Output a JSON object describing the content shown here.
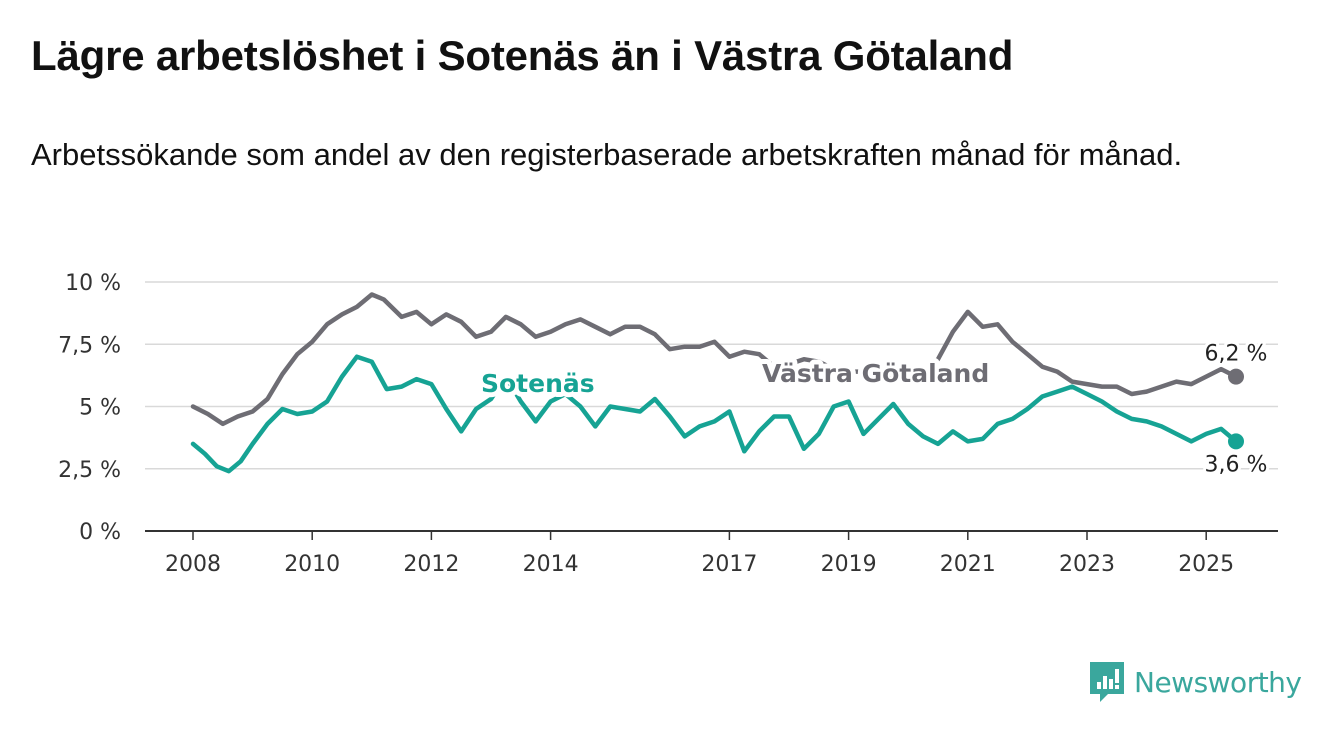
{
  "header": {
    "title": "Lägre arbetslöshet i Sotenäs än i Västra Götaland",
    "subtitle": "Arbetssökande som andel av den registerbaserade arbetskraften månad för månad."
  },
  "branding": {
    "name": "Newsworthy",
    "icon": "newsworthy-logo-icon",
    "color": "#3aa79d"
  },
  "chart_data": {
    "type": "line",
    "xlim": [
      2008,
      2026.2
    ],
    "ylim": [
      0,
      10
    ],
    "x_ticks": [
      2008,
      2010,
      2012,
      2014,
      2017,
      2019,
      2021,
      2023,
      2025
    ],
    "y_ticks": [
      {
        "value": 0,
        "label": "0 %"
      },
      {
        "value": 2.5,
        "label": "2,5 %"
      },
      {
        "value": 5,
        "label": "5 %"
      },
      {
        "value": 7.5,
        "label": "7,5 %"
      },
      {
        "value": 10,
        "label": "10 %"
      }
    ],
    "grid": true,
    "series": [
      {
        "name": "Västra Götaland",
        "color": "#6e6d74",
        "end_label": "6,2 %",
        "points": [
          [
            2008.0,
            5.0
          ],
          [
            2008.25,
            4.7
          ],
          [
            2008.5,
            4.3
          ],
          [
            2008.75,
            4.6
          ],
          [
            2009.0,
            4.8
          ],
          [
            2009.25,
            5.3
          ],
          [
            2009.5,
            6.3
          ],
          [
            2009.75,
            7.1
          ],
          [
            2010.0,
            7.6
          ],
          [
            2010.25,
            8.3
          ],
          [
            2010.5,
            8.7
          ],
          [
            2010.75,
            9.0
          ],
          [
            2011.0,
            9.5
          ],
          [
            2011.2,
            9.3
          ],
          [
            2011.5,
            8.6
          ],
          [
            2011.75,
            8.8
          ],
          [
            2012.0,
            8.3
          ],
          [
            2012.25,
            8.7
          ],
          [
            2012.5,
            8.4
          ],
          [
            2012.75,
            7.8
          ],
          [
            2013.0,
            8.0
          ],
          [
            2013.25,
            8.6
          ],
          [
            2013.5,
            8.3
          ],
          [
            2013.75,
            7.8
          ],
          [
            2014.0,
            8.0
          ],
          [
            2014.25,
            8.3
          ],
          [
            2014.5,
            8.5
          ],
          [
            2014.75,
            8.2
          ],
          [
            2015.0,
            7.9
          ],
          [
            2015.25,
            8.2
          ],
          [
            2015.5,
            8.2
          ],
          [
            2015.75,
            7.9
          ],
          [
            2016.0,
            7.3
          ],
          [
            2016.25,
            7.4
          ],
          [
            2016.5,
            7.4
          ],
          [
            2016.75,
            7.6
          ],
          [
            2017.0,
            7.0
          ],
          [
            2017.25,
            7.2
          ],
          [
            2017.5,
            7.1
          ],
          [
            2017.75,
            6.6
          ],
          [
            2018.0,
            6.7
          ],
          [
            2018.25,
            6.9
          ],
          [
            2018.5,
            6.8
          ],
          [
            2018.75,
            6.5
          ],
          [
            2019.0,
            6.4
          ],
          [
            2019.25,
            6.4
          ],
          [
            2019.5,
            6.2
          ],
          [
            2019.75,
            6.1
          ],
          [
            2020.0,
            6.0
          ],
          [
            2020.25,
            6.2
          ],
          [
            2020.5,
            6.9
          ],
          [
            2020.75,
            8.0
          ],
          [
            2021.0,
            8.8
          ],
          [
            2021.25,
            8.2
          ],
          [
            2021.5,
            8.3
          ],
          [
            2021.75,
            7.6
          ],
          [
            2022.0,
            7.1
          ],
          [
            2022.25,
            6.6
          ],
          [
            2022.5,
            6.4
          ],
          [
            2022.75,
            6.0
          ],
          [
            2023.0,
            5.9
          ],
          [
            2023.25,
            5.8
          ],
          [
            2023.5,
            5.8
          ],
          [
            2023.75,
            5.5
          ],
          [
            2024.0,
            5.6
          ],
          [
            2024.25,
            5.8
          ],
          [
            2024.5,
            6.0
          ],
          [
            2024.75,
            5.9
          ],
          [
            2025.0,
            6.2
          ],
          [
            2025.25,
            6.5
          ],
          [
            2025.5,
            6.2
          ]
        ]
      },
      {
        "name": "Sotenäs",
        "color": "#16a394",
        "end_label": "3,6 %",
        "points": [
          [
            2008.0,
            3.5
          ],
          [
            2008.2,
            3.1
          ],
          [
            2008.4,
            2.6
          ],
          [
            2008.6,
            2.4
          ],
          [
            2008.8,
            2.8
          ],
          [
            2009.0,
            3.5
          ],
          [
            2009.25,
            4.3
          ],
          [
            2009.5,
            4.9
          ],
          [
            2009.75,
            4.7
          ],
          [
            2010.0,
            4.8
          ],
          [
            2010.25,
            5.2
          ],
          [
            2010.5,
            6.2
          ],
          [
            2010.75,
            7.0
          ],
          [
            2011.0,
            6.8
          ],
          [
            2011.25,
            5.7
          ],
          [
            2011.5,
            5.8
          ],
          [
            2011.75,
            6.1
          ],
          [
            2012.0,
            5.9
          ],
          [
            2012.25,
            4.9
          ],
          [
            2012.5,
            4.0
          ],
          [
            2012.75,
            4.9
          ],
          [
            2013.0,
            5.3
          ],
          [
            2013.25,
            6.2
          ],
          [
            2013.5,
            5.2
          ],
          [
            2013.75,
            4.4
          ],
          [
            2014.0,
            5.2
          ],
          [
            2014.25,
            5.5
          ],
          [
            2014.5,
            5.0
          ],
          [
            2014.75,
            4.2
          ],
          [
            2015.0,
            5.0
          ],
          [
            2015.25,
            4.9
          ],
          [
            2015.5,
            4.8
          ],
          [
            2015.75,
            5.3
          ],
          [
            2016.0,
            4.6
          ],
          [
            2016.25,
            3.8
          ],
          [
            2016.5,
            4.2
          ],
          [
            2016.75,
            4.4
          ],
          [
            2017.0,
            4.8
          ],
          [
            2017.25,
            3.2
          ],
          [
            2017.5,
            4.0
          ],
          [
            2017.75,
            4.6
          ],
          [
            2018.0,
            4.6
          ],
          [
            2018.25,
            3.3
          ],
          [
            2018.5,
            3.9
          ],
          [
            2018.75,
            5.0
          ],
          [
            2019.0,
            5.2
          ],
          [
            2019.25,
            3.9
          ],
          [
            2019.5,
            4.5
          ],
          [
            2019.75,
            5.1
          ],
          [
            2020.0,
            4.3
          ],
          [
            2020.25,
            3.8
          ],
          [
            2020.5,
            3.5
          ],
          [
            2020.75,
            4.0
          ],
          [
            2021.0,
            3.6
          ],
          [
            2021.25,
            3.7
          ],
          [
            2021.5,
            4.3
          ],
          [
            2021.75,
            4.5
          ],
          [
            2022.0,
            4.9
          ],
          [
            2022.25,
            5.4
          ],
          [
            2022.5,
            5.6
          ],
          [
            2022.75,
            5.8
          ],
          [
            2023.0,
            5.5
          ],
          [
            2023.25,
            5.2
          ],
          [
            2023.5,
            4.8
          ],
          [
            2023.75,
            4.5
          ],
          [
            2024.0,
            4.4
          ],
          [
            2024.25,
            4.2
          ],
          [
            2024.5,
            3.9
          ],
          [
            2024.75,
            3.6
          ],
          [
            2025.0,
            3.9
          ],
          [
            2025.25,
            4.1
          ],
          [
            2025.5,
            3.6
          ]
        ]
      }
    ]
  }
}
